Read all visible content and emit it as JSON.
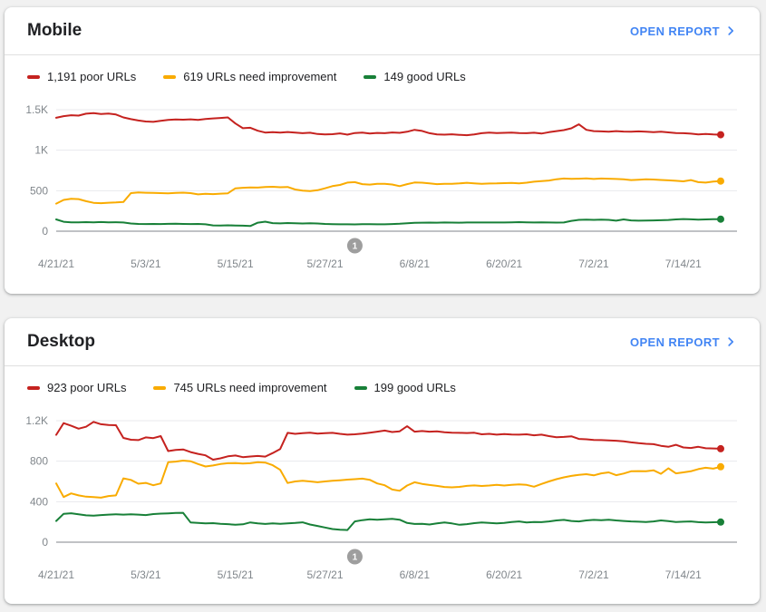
{
  "colors": {
    "poor": "#c5221f",
    "needs_improvement": "#f9ab00",
    "good": "#188038",
    "link": "#4285f4",
    "axis_label": "#80868b",
    "grid": "#e8eaed",
    "baseline": "#80868b",
    "badge": "#9e9e9e",
    "badge_text": "#ffffff"
  },
  "cards": [
    {
      "title": "Mobile",
      "open_report_label": "OPEN REPORT",
      "legend": [
        {
          "label": "1,191 poor URLs",
          "color_key": "poor"
        },
        {
          "label": "619 URLs need improvement",
          "color_key": "needs_improvement"
        },
        {
          "label": "149 good URLs",
          "color_key": "good"
        }
      ],
      "chart_data": {
        "type": "line",
        "title": "Mobile Core Web Vitals URL trend",
        "xlabel": "",
        "ylabel": "",
        "legend_position": "top",
        "grid": true,
        "x_tick_labels": [
          "4/21/21",
          "5/3/21",
          "5/15/21",
          "5/27/21",
          "6/8/21",
          "6/20/21",
          "7/2/21",
          "7/14/21"
        ],
        "x_tick_days": [
          0,
          12,
          24,
          36,
          48,
          60,
          72,
          84
        ],
        "x_range_days": 89,
        "ylim": [
          0,
          1500
        ],
        "y_ticks": [
          {
            "value": 0,
            "label": "0"
          },
          {
            "value": 500,
            "label": "500"
          },
          {
            "value": 1000,
            "label": "1K"
          },
          {
            "value": 1500,
            "label": "1.5K"
          }
        ],
        "annotation": {
          "day": 40,
          "label": "1"
        },
        "series": [
          {
            "name": "poor URLs",
            "color_key": "poor",
            "end_value": 1191,
            "values": [
              1400,
              1421,
              1432,
              1427,
              1451,
              1458,
              1447,
              1452,
              1441,
              1405,
              1384,
              1367,
              1355,
              1350,
              1362,
              1373,
              1380,
              1377,
              1381,
              1375,
              1386,
              1393,
              1398,
              1405,
              1330,
              1272,
              1277,
              1240,
              1218,
              1223,
              1218,
              1225,
              1217,
              1210,
              1216,
              1200,
              1194,
              1198,
              1208,
              1192,
              1212,
              1217,
              1206,
              1213,
              1210,
              1219,
              1215,
              1228,
              1252,
              1238,
              1210,
              1196,
              1192,
              1197,
              1190,
              1186,
              1196,
              1210,
              1217,
              1212,
              1214,
              1217,
              1212,
              1210,
              1216,
              1206,
              1222,
              1236,
              1248,
              1270,
              1320,
              1252,
              1236,
              1232,
              1228,
              1236,
              1230,
              1228,
              1233,
              1228,
              1222,
              1228,
              1220,
              1212,
              1210,
              1204,
              1194,
              1200,
              1194,
              1191
            ]
          },
          {
            "name": "URLs need improvement",
            "color_key": "needs_improvement",
            "end_value": 619,
            "values": [
              340,
              386,
              400,
              396,
              370,
              350,
              346,
              351,
              355,
              361,
              470,
              478,
              475,
              472,
              470,
              468,
              473,
              476,
              470,
              455,
              461,
              458,
              463,
              468,
              530,
              536,
              541,
              538,
              546,
              549,
              543,
              546,
              515,
              500,
              495,
              506,
              530,
              556,
              571,
              600,
              606,
              581,
              575,
              586,
              585,
              576,
              556,
              581,
              601,
              599,
              590,
              581,
              585,
              586,
              590,
              598,
              591,
              586,
              589,
              590,
              593,
              596,
              590,
              599,
              611,
              618,
              626,
              641,
              650,
              646,
              648,
              651,
              645,
              650,
              648,
              645,
              640,
              631,
              636,
              641,
              638,
              632,
              628,
              622,
              616,
              631,
              606,
              600,
              612,
              619
            ]
          },
          {
            "name": "good URLs",
            "color_key": "good",
            "end_value": 149,
            "values": [
              145,
              116,
              110,
              110,
              112,
              110,
              113,
              110,
              111,
              108,
              95,
              90,
              88,
              90,
              88,
              91,
              92,
              90,
              88,
              90,
              85,
              72,
              70,
              73,
              70,
              68,
              64,
              105,
              118,
              100,
              96,
              101,
              98,
              95,
              97,
              95,
              90,
              87,
              85,
              85,
              84,
              86,
              86,
              85,
              85,
              88,
              92,
              98,
              104,
              105,
              106,
              105,
              107,
              106,
              105,
              107,
              108,
              108,
              107,
              108,
              108,
              110,
              112,
              110,
              108,
              110,
              108,
              106,
              108,
              128,
              140,
              142,
              140,
              143,
              140,
              130,
              146,
              133,
              130,
              131,
              133,
              136,
              139,
              146,
              150,
              147,
              143,
              146,
              148,
              149
            ]
          }
        ]
      }
    },
    {
      "title": "Desktop",
      "open_report_label": "OPEN REPORT",
      "legend": [
        {
          "label": "923 poor URLs",
          "color_key": "poor"
        },
        {
          "label": "745 URLs need improvement",
          "color_key": "needs_improvement"
        },
        {
          "label": "199 good URLs",
          "color_key": "good"
        }
      ],
      "chart_data": {
        "type": "line",
        "title": "Desktop Core Web Vitals URL trend",
        "xlabel": "",
        "ylabel": "",
        "legend_position": "top",
        "grid": true,
        "x_tick_labels": [
          "4/21/21",
          "5/3/21",
          "5/15/21",
          "5/27/21",
          "6/8/21",
          "6/20/21",
          "7/2/21",
          "7/14/21"
        ],
        "x_tick_days": [
          0,
          12,
          24,
          36,
          48,
          60,
          72,
          84
        ],
        "x_range_days": 89,
        "ylim": [
          0,
          1200
        ],
        "y_ticks": [
          {
            "value": 0,
            "label": "0"
          },
          {
            "value": 400,
            "label": "400"
          },
          {
            "value": 800,
            "label": "800"
          },
          {
            "value": 1200,
            "label": "1.2K"
          }
        ],
        "annotation": {
          "day": 40,
          "label": "1"
        },
        "series": [
          {
            "name": "poor URLs",
            "color_key": "poor",
            "end_value": 923,
            "values": [
              1060,
              1176,
              1150,
              1121,
              1140,
              1188,
              1165,
              1158,
              1155,
              1030,
              1012,
              1008,
              1035,
              1028,
              1048,
              900,
              912,
              916,
              890,
              872,
              858,
              815,
              828,
              848,
              856,
              840,
              846,
              852,
              845,
              880,
              921,
              1080,
              1070,
              1076,
              1081,
              1072,
              1076,
              1080,
              1070,
              1062,
              1066,
              1072,
              1082,
              1092,
              1102,
              1088,
              1095,
              1145,
              1092,
              1098,
              1092,
              1095,
              1085,
              1082,
              1080,
              1078,
              1081,
              1066,
              1070,
              1062,
              1068,
              1064,
              1062,
              1066,
              1056,
              1062,
              1048,
              1036,
              1040,
              1046,
              1020,
              1016,
              1010,
              1008,
              1006,
              1002,
              996,
              986,
              978,
              972,
              968,
              952,
              942,
              962,
              936,
              930,
              942,
              928,
              926,
              923
            ]
          },
          {
            "name": "URLs need improvement",
            "color_key": "needs_improvement",
            "end_value": 745,
            "values": [
              580,
              446,
              482,
              462,
              450,
              445,
              440,
              456,
              462,
              630,
              615,
              578,
              586,
              562,
              580,
              790,
              796,
              806,
              800,
              772,
              748,
              758,
              772,
              780,
              782,
              776,
              780,
              790,
              786,
              760,
              715,
              585,
              600,
              606,
              600,
              592,
              600,
              606,
              612,
              618,
              622,
              628,
              616,
              580,
              562,
              520,
              508,
              560,
              592,
              576,
              565,
              556,
              545,
              542,
              546,
              556,
              561,
              555,
              560,
              566,
              560,
              566,
              570,
              566,
              548,
              575,
              600,
              622,
              640,
              655,
              665,
              672,
              660,
              680,
              690,
              662,
              678,
              700,
              702,
              700,
              710,
              675,
              730,
              680,
              690,
              700,
              722,
              735,
              726,
              745
            ]
          },
          {
            "name": "good URLs",
            "color_key": "good",
            "end_value": 199,
            "values": [
              210,
              280,
              286,
              275,
              265,
              262,
              268,
              272,
              276,
              272,
              275,
              272,
              268,
              278,
              282,
              285,
              288,
              290,
              195,
              190,
              185,
              188,
              182,
              178,
              172,
              176,
              195,
              185,
              180,
              186,
              182,
              186,
              190,
              196,
              175,
              160,
              145,
              130,
              124,
              120,
              205,
              218,
              226,
              222,
              226,
              230,
              222,
              190,
              180,
              182,
              175,
              185,
              195,
              185,
              172,
              178,
              188,
              195,
              190,
              185,
              190,
              200,
              205,
              195,
              200,
              198,
              205,
              215,
              220,
              210,
              205,
              215,
              220,
              218,
              222,
              215,
              210,
              205,
              202,
              200,
              205,
              215,
              208,
              200,
              202,
              205,
              198,
              195,
              197,
              199
            ]
          }
        ]
      }
    }
  ]
}
